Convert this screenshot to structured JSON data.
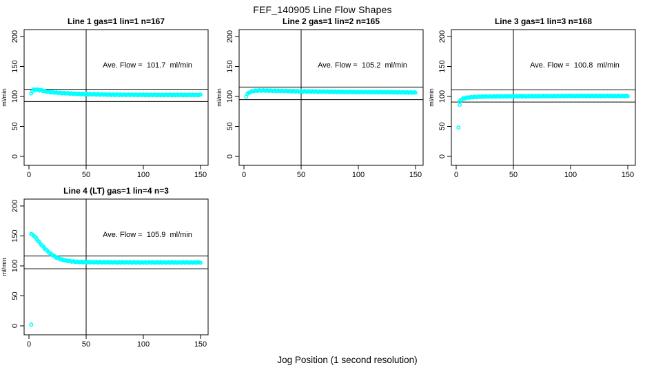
{
  "figure": {
    "title": "FEF_140905  Line Flow Shapes",
    "xlabel": "Jog Position (1 second resolution)",
    "ylabel": "ml/min"
  },
  "colors": {
    "points": "#00FFFF",
    "axis": "#000000",
    "background": "#FFFFFF"
  },
  "chart_data": [
    {
      "type": "scatter",
      "title": "Line 1 gas=1 lin=1 n=167",
      "ave_label": "Ave. Flow =  101.7  ml/min",
      "ave_flow": 101.7,
      "n": 167,
      "ylabel": "ml/min",
      "x_ticks": [
        0,
        50,
        100,
        150
      ],
      "y_ticks": [
        0,
        50,
        100,
        150,
        200
      ],
      "xlim": [
        -4,
        157
      ],
      "ylim": [
        -15,
        212
      ],
      "v_line": 50,
      "h_lines": [
        91.5,
        111.9
      ],
      "profile": [
        [
          3,
          109
        ],
        [
          4,
          111
        ],
        [
          6,
          111.5
        ],
        [
          10,
          110.5
        ],
        [
          15,
          108.5
        ],
        [
          20,
          107
        ],
        [
          30,
          105.5
        ],
        [
          45,
          104
        ],
        [
          70,
          103
        ],
        [
          110,
          102.5
        ],
        [
          150,
          102.5
        ]
      ],
      "extra_points": [
        [
          2,
          105
        ]
      ]
    },
    {
      "type": "scatter",
      "title": "Line 2 gas=1 lin=2 n=165",
      "ave_label": "Ave. Flow =  105.2  ml/min",
      "ave_flow": 105.2,
      "n": 165,
      "ylabel": "ml/min",
      "x_ticks": [
        0,
        50,
        100,
        150
      ],
      "y_ticks": [
        0,
        50,
        100,
        150,
        200
      ],
      "xlim": [
        -4,
        157
      ],
      "ylim": [
        -15,
        212
      ],
      "v_line": 50,
      "h_lines": [
        94.7,
        115.7
      ],
      "profile": [
        [
          3,
          104
        ],
        [
          5,
          107
        ],
        [
          8,
          109
        ],
        [
          14,
          110
        ],
        [
          25,
          109.5
        ],
        [
          50,
          108.5
        ],
        [
          90,
          107.5
        ],
        [
          130,
          107
        ],
        [
          150,
          106.5
        ]
      ],
      "extra_points": [
        [
          2,
          99.5
        ]
      ]
    },
    {
      "type": "scatter",
      "title": "Line 3 gas=1 lin=3 n=168",
      "ave_label": "Ave. Flow =  100.8  ml/min",
      "ave_flow": 100.8,
      "n": 168,
      "ylabel": "ml/min",
      "x_ticks": [
        0,
        50,
        100,
        150
      ],
      "y_ticks": [
        0,
        50,
        100,
        150,
        200
      ],
      "xlim": [
        -4,
        157
      ],
      "ylim": [
        -15,
        212
      ],
      "v_line": 50,
      "h_lines": [
        90.7,
        110.9
      ],
      "profile": [
        [
          4,
          94
        ],
        [
          5,
          95.5
        ],
        [
          7,
          97
        ],
        [
          10,
          98
        ],
        [
          15,
          99
        ],
        [
          25,
          99.8
        ],
        [
          50,
          100.3
        ],
        [
          100,
          100.8
        ],
        [
          150,
          100.8
        ]
      ],
      "extra_points": [
        [
          2,
          48
        ],
        [
          3,
          86
        ],
        [
          3,
          92
        ]
      ]
    },
    {
      "type": "scatter",
      "title": "Line 4 (LT) gas=1 lin=4 n=3",
      "ave_label": "Ave. Flow =  105.9  ml/min",
      "ave_flow": 105.9,
      "n": 3,
      "ylabel": "ml/min",
      "x_ticks": [
        0,
        50,
        100,
        150
      ],
      "y_ticks": [
        0,
        50,
        100,
        150,
        200
      ],
      "xlim": [
        -4,
        157
      ],
      "ylim": [
        -15,
        212
      ],
      "v_line": 50,
      "h_lines": [
        95.3,
        116.5
      ],
      "profile": [
        [
          2,
          153
        ],
        [
          4,
          151
        ],
        [
          6,
          147
        ],
        [
          8,
          142
        ],
        [
          10,
          137
        ],
        [
          13,
          131
        ],
        [
          16,
          125
        ],
        [
          20,
          119
        ],
        [
          24,
          114
        ],
        [
          28,
          111
        ],
        [
          32,
          109
        ],
        [
          36,
          107.8
        ],
        [
          40,
          107
        ],
        [
          50,
          106.3
        ],
        [
          70,
          106
        ],
        [
          100,
          105.8
        ],
        [
          150,
          105.8
        ]
      ],
      "extra_points": [
        [
          2,
          2
        ]
      ]
    }
  ]
}
